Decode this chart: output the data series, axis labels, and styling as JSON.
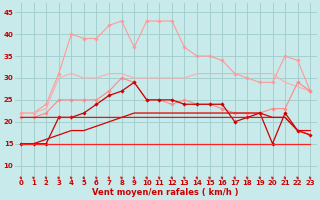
{
  "x": [
    0,
    1,
    2,
    3,
    4,
    5,
    6,
    7,
    8,
    9,
    10,
    11,
    12,
    13,
    14,
    15,
    16,
    17,
    18,
    19,
    20,
    21,
    22,
    23
  ],
  "series": [
    {
      "name": "top_pink_markers",
      "color": "#ff9999",
      "lw": 0.8,
      "marker": "D",
      "markersize": 1.8,
      "y": [
        22,
        22,
        24,
        31,
        40,
        39,
        39,
        42,
        43,
        37,
        43,
        43,
        43,
        37,
        35,
        35,
        34,
        31,
        30,
        29,
        29,
        35,
        34,
        27
      ]
    },
    {
      "name": "mid_pink_no_marker",
      "color": "#ffaaaa",
      "lw": 0.8,
      "marker": null,
      "markersize": 0,
      "y": [
        22,
        22,
        23,
        30,
        31,
        30,
        30,
        31,
        31,
        30,
        30,
        30,
        30,
        30,
        31,
        31,
        31,
        31,
        31,
        31,
        31,
        29,
        28,
        27
      ]
    },
    {
      "name": "lower_pink_markers",
      "color": "#ff8888",
      "lw": 0.8,
      "marker": "D",
      "markersize": 1.8,
      "y": [
        21,
        21,
        22,
        25,
        25,
        25,
        25,
        27,
        30,
        29,
        25,
        25,
        24,
        25,
        24,
        24,
        23,
        22,
        22,
        22,
        23,
        23,
        29,
        27
      ]
    },
    {
      "name": "dark_red_markers",
      "color": "#cc0000",
      "lw": 0.9,
      "marker": "D",
      "markersize": 1.8,
      "y": [
        15,
        15,
        15,
        21,
        21,
        22,
        24,
        26,
        27,
        29,
        25,
        25,
        25,
        24,
        24,
        24,
        24,
        20,
        21,
        22,
        15,
        22,
        18,
        17
      ]
    },
    {
      "name": "red_flat_upper",
      "color": "#ee1111",
      "lw": 0.9,
      "marker": null,
      "markersize": 0,
      "y": [
        21,
        21,
        21,
        21,
        21,
        21,
        21,
        21,
        21,
        21,
        21,
        21,
        21,
        21,
        21,
        21,
        21,
        21,
        21,
        21,
        21,
        21,
        18,
        17
      ]
    },
    {
      "name": "red_flat_mid",
      "color": "#dd0000",
      "lw": 0.9,
      "marker": null,
      "markersize": 0,
      "y": [
        15,
        15,
        16,
        17,
        18,
        18,
        19,
        20,
        21,
        22,
        22,
        22,
        22,
        22,
        22,
        22,
        22,
        22,
        22,
        22,
        21,
        21,
        18,
        18
      ]
    },
    {
      "name": "red_flat_bottom",
      "color": "#ff2222",
      "lw": 0.9,
      "marker": null,
      "markersize": 0,
      "y": [
        15,
        15,
        15,
        15,
        15,
        15,
        15,
        15,
        15,
        15,
        15,
        15,
        15,
        15,
        15,
        15,
        15,
        15,
        15,
        15,
        15,
        15,
        15,
        15
      ]
    }
  ],
  "xlabel": "Vent moyen/en rafales ( km/h )",
  "xlim_lo": -0.5,
  "xlim_hi": 23.5,
  "ylim_lo": 7,
  "ylim_hi": 47,
  "yticks": [
    10,
    15,
    20,
    25,
    30,
    35,
    40,
    45
  ],
  "xticks": [
    0,
    1,
    2,
    3,
    4,
    5,
    6,
    7,
    8,
    9,
    10,
    11,
    12,
    13,
    14,
    15,
    16,
    17,
    18,
    19,
    20,
    21,
    22,
    23
  ],
  "bg_color": "#c8eaea",
  "grid_color": "#a0cccc",
  "tick_color": "#cc0000",
  "label_color": "#cc0000",
  "arrow_color": "#cc2222",
  "tick_fontsize": 5.0,
  "xlabel_fontsize": 6.0
}
